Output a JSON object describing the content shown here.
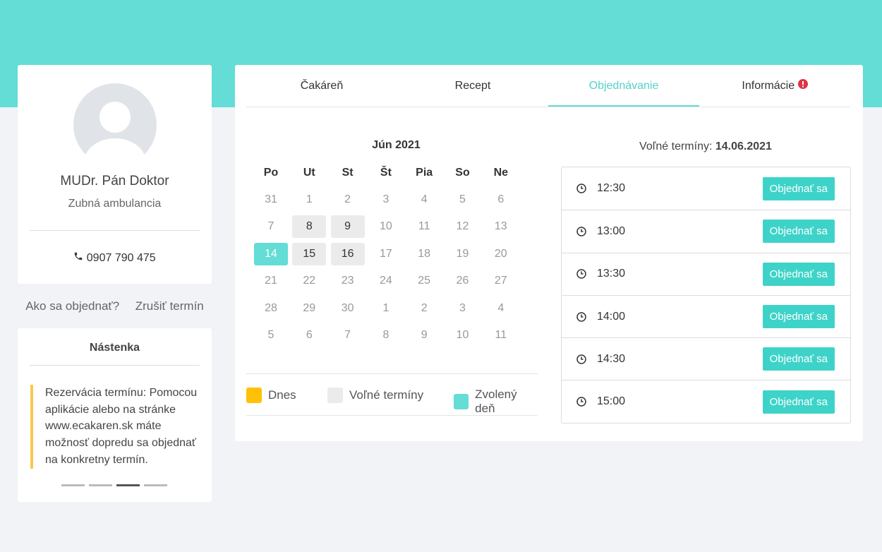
{
  "profile": {
    "name": "MUDr. Pán Doktor",
    "specialty": "Zubná ambulancia",
    "phone": "0907 790 475"
  },
  "links": [
    "Ako sa objednať?",
    "Zrušiť termín"
  ],
  "board": {
    "title": "Nástenka",
    "text": "Rezervácia termínu: Pomocou aplikácie alebo na stránke www.ecakaren.sk máte možnosť dopredu sa objednať na konkretny termín."
  },
  "tabs": {
    "items": [
      "Čakáreň",
      "Recept",
      "Objednávanie",
      "Informácie"
    ],
    "active": 2
  },
  "calendar": {
    "month": "Jún 2021",
    "weekdays": [
      "Po",
      "Ut",
      "St",
      "Št",
      "Pia",
      "So",
      "Ne"
    ],
    "weeks": [
      [
        31,
        1,
        2,
        3,
        4,
        5,
        6
      ],
      [
        7,
        {
          "day": 8,
          "state": "free"
        },
        {
          "day": 9,
          "state": "free"
        },
        10,
        11,
        12,
        13
      ],
      [
        {
          "day": 14,
          "state": "selected"
        },
        {
          "day": 15,
          "state": "free"
        },
        {
          "day": 16,
          "state": "free"
        },
        17,
        18,
        19,
        20
      ],
      [
        21,
        22,
        23,
        24,
        25,
        26,
        27
      ],
      [
        28,
        29,
        30,
        1,
        2,
        3,
        4
      ],
      [
        5,
        6,
        7,
        8,
        9,
        10,
        11
      ]
    ],
    "legend": [
      {
        "label": "Dnes",
        "color": "#ffc107"
      },
      {
        "label": "Voľné termíny",
        "color": "#ebebeb"
      },
      {
        "label": "Zvolený deň",
        "color": "#63ddd6"
      }
    ]
  },
  "slots": {
    "heading": "Voľné termíny:",
    "date": "14.06.2021",
    "button_label": "Objednať sa",
    "times": [
      "12:30",
      "13:00",
      "13:30",
      "14:00",
      "14:30",
      "15:00"
    ]
  }
}
